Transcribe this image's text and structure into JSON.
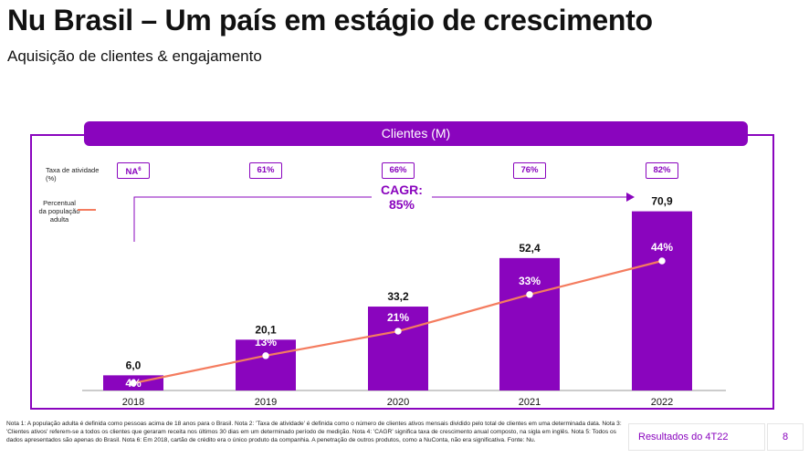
{
  "page": {
    "title": "Nu Brasil – Um país em estágio de crescimento",
    "subtitle": "Aquisição de clientes & engajamento",
    "banner": "Clientes (M)",
    "activity_label": "Taxa de atividade (%)",
    "population_label": "Percentual da população adulta",
    "activity_rates": [
      {
        "value": "NA",
        "sup": "6"
      },
      {
        "value": "61%",
        "sup": ""
      },
      {
        "value": "66%",
        "sup": ""
      },
      {
        "value": "76%",
        "sup": ""
      },
      {
        "value": "82%",
        "sup": ""
      }
    ],
    "cagr_label": "CAGR:",
    "cagr_value": "85%",
    "footnote": "Nota 1: A população adulta é definida como pessoas acima de 18 anos para o Brasil. Nota 2: 'Taxa de atividade' é definida como o número de clientes ativos mensais dividido pelo total de clientes em uma determinada data. Nota 3: 'Clientes ativos' referem-se a todos os clientes que geraram receita nos últimos 30 dias em um determinado período de medição. Nota 4: 'CAGR' significa taxa de crescimento anual composto, na sigla em inglês. Nota 5: Todos os dados apresentados são apenas do Brasil. Nota 6: Em 2018, cartão de crédito era o único produto da companhia. A penetração de outros produtos, como a NuConta, não era significativa. Fonte: Nu.",
    "results_label": "Resultados do 4T22",
    "page_number": "8"
  },
  "colors": {
    "accent": "#8a05be",
    "line": "#f47c5f"
  },
  "chart_data": {
    "type": "bar",
    "categories": [
      "2018",
      "2019",
      "2020",
      "2021",
      "2022"
    ],
    "series": [
      {
        "name": "Clientes (M)",
        "values": [
          6.0,
          20.1,
          33.2,
          52.4,
          70.9
        ],
        "labels": [
          "6,0",
          "20,1",
          "33,2",
          "52,4",
          "70,9"
        ]
      },
      {
        "name": "Percentual da população adulta",
        "type": "line",
        "values": [
          4,
          13,
          21,
          33,
          44
        ],
        "labels": [
          "4%",
          "13%",
          "21%",
          "33%",
          "44%"
        ]
      }
    ],
    "title": "Clientes (M)",
    "cagr": "85%",
    "ylim": [
      0,
      75
    ],
    "grid": false
  }
}
